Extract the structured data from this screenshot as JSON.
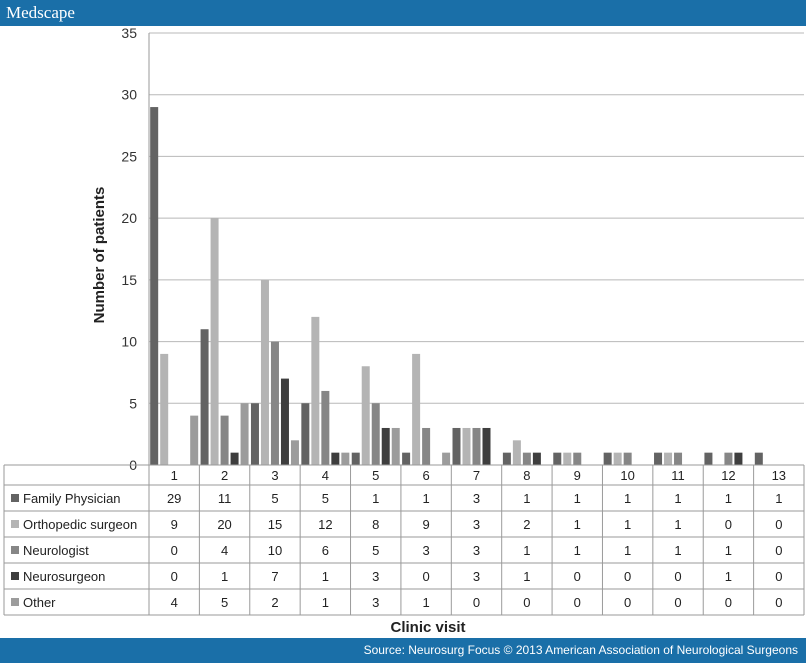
{
  "header": {
    "brand": "Medscape"
  },
  "footer": {
    "source": "Source: Neurosurg Focus © 2013 American Association of Neurological Surgeons"
  },
  "chart_data": {
    "type": "bar",
    "title": "",
    "xlabel": "Clinic visit",
    "ylabel": "Number of patients",
    "ylim": [
      0,
      35
    ],
    "yticks": [
      0,
      5,
      10,
      15,
      20,
      25,
      30,
      35
    ],
    "grid": true,
    "legend": "table-below",
    "categories": [
      "1",
      "2",
      "3",
      "4",
      "5",
      "6",
      "7",
      "8",
      "9",
      "10",
      "11",
      "12",
      "13"
    ],
    "series": [
      {
        "name": "Family Physician",
        "color": "#636363",
        "values": [
          29,
          11,
          5,
          5,
          1,
          1,
          3,
          1,
          1,
          1,
          1,
          1,
          1
        ]
      },
      {
        "name": "Orthopedic surgeon",
        "color": "#b4b4b4",
        "values": [
          9,
          20,
          15,
          12,
          8,
          9,
          3,
          2,
          1,
          1,
          1,
          0,
          0
        ]
      },
      {
        "name": "Neurologist",
        "color": "#868686",
        "values": [
          0,
          4,
          10,
          6,
          5,
          3,
          3,
          1,
          1,
          1,
          1,
          1,
          0
        ]
      },
      {
        "name": "Neurosurgeon",
        "color": "#3e3e3e",
        "values": [
          0,
          1,
          7,
          1,
          3,
          0,
          3,
          1,
          0,
          0,
          0,
          1,
          0
        ]
      },
      {
        "name": "Other",
        "color": "#9c9c9c",
        "values": [
          4,
          5,
          2,
          1,
          3,
          1,
          0,
          0,
          0,
          0,
          0,
          0,
          0
        ]
      }
    ]
  }
}
